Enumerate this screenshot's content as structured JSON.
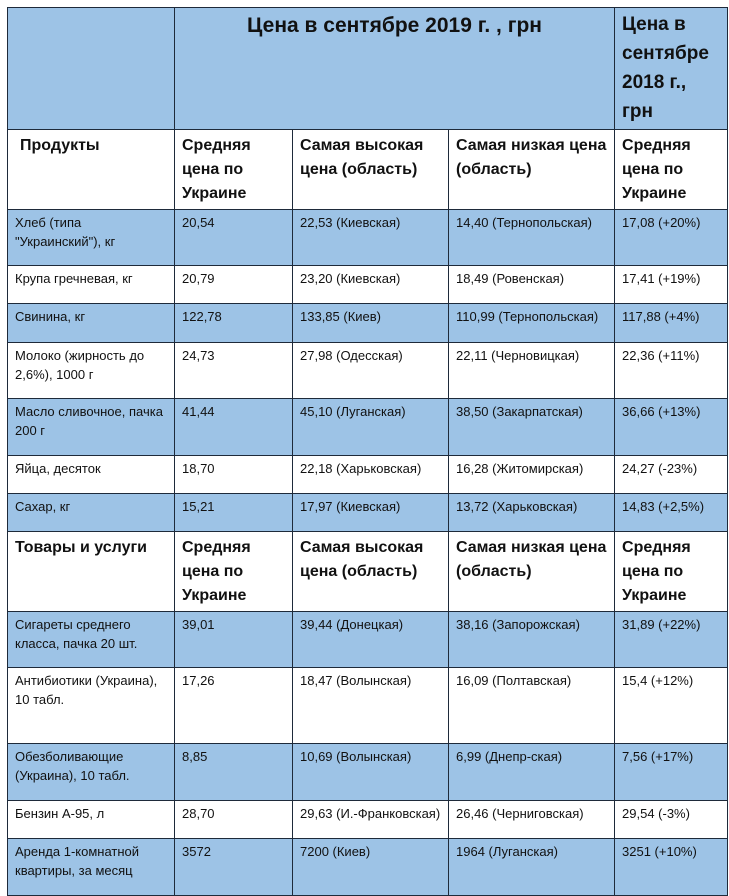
{
  "header": {
    "title_2019": "Цена в сентябре 2019 г. , грн",
    "title_2018": "Цена в сентябре 2018 г., грн"
  },
  "columns": {
    "avg": "Средняя цена по Украине",
    "high": "Самая высокая цена (область)",
    "low": "Самая низкая цена (область)",
    "avg2018": "Средняя цена по Украине"
  },
  "sections": [
    {
      "title": "Продукты",
      "rows": [
        {
          "name": "Хлеб (типа \"Украинский\"), кг",
          "avg": "20,54",
          "high": "22,53 (Киевская)",
          "low": "14,40 (Тернопольская)",
          "prev": "17,08 (+20%)"
        },
        {
          "name": "Крупа гречневая, кг",
          "avg": "20,79",
          "high": "23,20 (Киевская)",
          "low": "18,49 (Ровенская)",
          "prev": "17,41 (+19%)"
        },
        {
          "name": "Свинина, кг",
          "avg": "122,78",
          "high": "133,85 (Киев)",
          "low": "110,99 (Тернопольская)",
          "prev": "117,88 (+4%)"
        },
        {
          "name": "Молоко (жирность до 2,6%), 1000 г",
          "avg": "24,73",
          "high": "27,98 (Одесская)",
          "low": "22,11 (Черновицкая)",
          "prev": "22,36 (+11%)"
        },
        {
          "name": "Масло сливочное, пачка 200 г",
          "avg": "41,44",
          "high": "45,10 (Луганская)",
          "low": "38,50 (Закарпатская)",
          "prev": "36,66 (+13%)"
        },
        {
          "name": "Яйца, десяток",
          "avg": "18,70",
          "high": "22,18 (Харьковская)",
          "low": "16,28 (Житомирская)",
          "prev": "24,27 (-23%)"
        },
        {
          "name": " Сахар, кг",
          "avg": "15,21",
          "high": "17,97 (Киевская)",
          "low": "13,72 (Харьковская)",
          "prev": "14,83 (+2,5%)"
        }
      ]
    },
    {
      "title": "Товары и услуги",
      "rows": [
        {
          "name": "Сигареты среднего класса, пачка 20 шт.",
          "avg": "39,01",
          "high": "39,44 (Донецкая)",
          "low": "38,16 (Запорожская)",
          "prev": "31,89 (+22%)"
        },
        {
          "name": "Антибиотики (Украина), 10 табл.",
          "avg": "17,26",
          "high": "18,47 (Волынская)",
          "low": "16,09 (Полтавская)",
          "prev": "15,4 (+12%)"
        },
        {
          "name": "Обезболивающие (Украина), 10 табл.",
          "avg": "8,85",
          "high": "10,69 (Волынская)",
          "low": "6,99 (Днепр-ская)",
          "prev": "7,56 (+17%)"
        },
        {
          "name": "Бензин А-95, л",
          "avg": "28,70",
          "high": "29,63 (И.-Франковская)",
          "low": "26,46 (Черниговская)",
          "prev": "29,54 (-3%)"
        },
        {
          "name": "Аренда 1-комнатной квартиры, за месяц",
          "avg": "3572",
          "high": "7200 (Киев)",
          "low": "1964 (Луганская)",
          "prev": "3251 (+10%)"
        }
      ]
    }
  ],
  "colors": {
    "row_blue": "#9dc3e6",
    "border": "#1e2a3a"
  }
}
